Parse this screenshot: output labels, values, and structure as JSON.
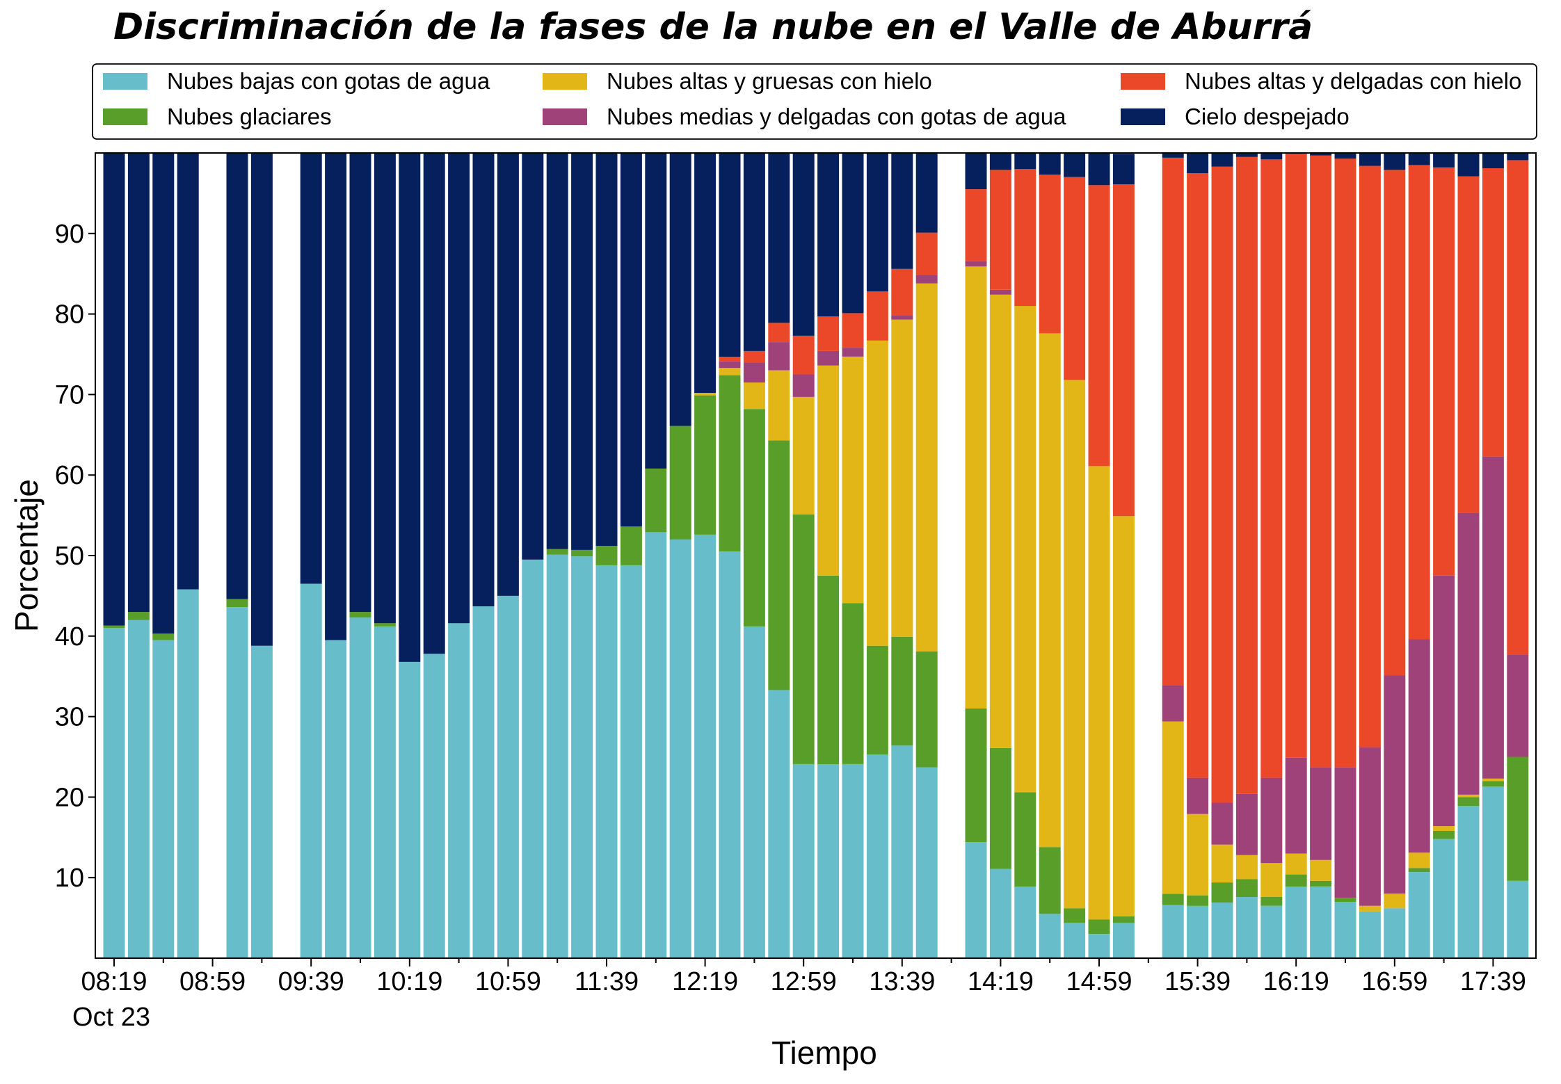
{
  "chart_data": {
    "type": "bar",
    "stacked": true,
    "title": "Discriminación de la fases de la nube en el Valle de Aburrá",
    "xlabel": "Tiempo",
    "ylabel": "Porcentaje",
    "ylim": [
      0,
      100
    ],
    "yticks": [
      10,
      20,
      30,
      40,
      50,
      60,
      70,
      80,
      90
    ],
    "xtick_labels": [
      "08:19",
      "08:59",
      "09:39",
      "10:19",
      "10:59",
      "11:39",
      "12:19",
      "12:59",
      "13:39",
      "14:19",
      "14:59",
      "15:39",
      "16:19",
      "16:59",
      "17:39"
    ],
    "xtick_sublabel": "Oct 23",
    "x_start": "08:19",
    "slot_minutes": 10,
    "legend_position": "top",
    "categories": [
      "08:19",
      "08:29",
      "08:39",
      "08:49",
      "08:59",
      "09:09",
      "09:19",
      "09:29",
      "09:39",
      "09:49",
      "09:59",
      "10:09",
      "10:19",
      "10:29",
      "10:39",
      "10:49",
      "10:59",
      "11:09",
      "11:19",
      "11:29",
      "11:39",
      "11:49",
      "11:59",
      "12:09",
      "12:19",
      "12:29",
      "12:39",
      "12:49",
      "12:59",
      "13:09",
      "13:19",
      "13:29",
      "13:39",
      "13:49",
      "13:59",
      "14:09",
      "14:19",
      "14:29",
      "14:39",
      "14:49",
      "14:59",
      "15:09",
      "15:19",
      "15:29",
      "15:39",
      "15:49",
      "15:59",
      "16:09",
      "16:19",
      "16:29",
      "16:39",
      "16:49",
      "16:59",
      "17:09",
      "17:19",
      "17:29",
      "17:39",
      "17:49"
    ],
    "series": [
      {
        "name": "Nubes bajas con gotas de agua",
        "color": "#67BDCA",
        "values": [
          41,
          42,
          39.5,
          45.8,
          null,
          43.6,
          38.8,
          null,
          46.5,
          39.5,
          42.3,
          41.2,
          36.8,
          37.8,
          41.6,
          43.7,
          45,
          49.5,
          50.1,
          49.9,
          48.8,
          48.8,
          52.9,
          52,
          52.6,
          50.5,
          41.2,
          33.3,
          24.1,
          24.1,
          24.1,
          25.3,
          26.4,
          23.7,
          null,
          14.4,
          11.1,
          8.9,
          5.5,
          4.4,
          3,
          4.4,
          null,
          6.6,
          6.5,
          6.9,
          7.6,
          6.5,
          8.9,
          8.9,
          7,
          5.8,
          6.2,
          10.7,
          14.8,
          18.9,
          21.3,
          9.6
        ]
      },
      {
        "name": "Nubes glaciares",
        "color": "#5A9E2A",
        "values": [
          0.3,
          1,
          0.8,
          0,
          null,
          1,
          0,
          null,
          0,
          0,
          0.7,
          0.4,
          0,
          0,
          0,
          0,
          0,
          0,
          0.7,
          0.8,
          2.4,
          4.8,
          7.9,
          14.1,
          17.3,
          21.9,
          27,
          31,
          31,
          23.4,
          20,
          13.5,
          13.5,
          14.4,
          null,
          16.6,
          15,
          11.7,
          8.3,
          1.8,
          1.8,
          0.8,
          null,
          1.4,
          1.3,
          2.5,
          2.2,
          1.1,
          1.5,
          0.7,
          0.5,
          0,
          0,
          0.5,
          1,
          1.1,
          0.7,
          15.4
        ]
      },
      {
        "name": "Nubes altas y gruesas con hielo",
        "color": "#E2B616",
        "values": [
          0,
          0,
          0,
          0,
          null,
          0,
          0,
          null,
          0,
          0,
          0,
          0,
          0,
          0,
          0,
          0,
          0,
          0,
          0,
          0,
          0,
          0,
          0,
          0,
          0.3,
          0.9,
          3.3,
          8.7,
          14.6,
          26.1,
          30.6,
          37.9,
          39.4,
          45.7,
          null,
          54.9,
          56.3,
          60.4,
          63.8,
          65.6,
          56.3,
          49.7,
          null,
          21.4,
          10.1,
          4.7,
          3,
          4.2,
          2.6,
          2.6,
          0,
          0.7,
          1.8,
          1.9,
          0.6,
          0.3,
          0.3,
          0
        ]
      },
      {
        "name": "Nubes medias y delgadas con gotas de agua",
        "color": "#A0427A",
        "values": [
          0,
          0,
          0,
          0,
          null,
          0,
          0,
          null,
          0,
          0,
          0,
          0,
          0,
          0,
          0,
          0,
          0,
          0,
          0,
          0,
          0,
          0,
          0,
          0,
          0,
          0.8,
          2.5,
          3.5,
          2.8,
          1.8,
          1.1,
          0,
          0.5,
          1,
          null,
          0.7,
          0.6,
          0,
          0,
          0,
          0,
          0,
          null,
          4.5,
          4.5,
          5.2,
          7.6,
          10.6,
          11.9,
          11.5,
          16.2,
          19.7,
          27.1,
          26.5,
          31.1,
          35,
          40,
          12.7
        ]
      },
      {
        "name": "Nubes altas y delgadas con hielo",
        "color": "#EB482A",
        "values": [
          0,
          0,
          0,
          0,
          null,
          0,
          0,
          null,
          0,
          0,
          0,
          0,
          0,
          0,
          0,
          0,
          0,
          0,
          0,
          0,
          0,
          0,
          0,
          0,
          0,
          0.6,
          1.4,
          2.4,
          4.8,
          4.3,
          4.3,
          6.1,
          5.8,
          5.3,
          null,
          8.9,
          14.9,
          17,
          19.7,
          25.2,
          34.9,
          41.2,
          null,
          65.5,
          75.1,
          79,
          79.1,
          76.8,
          75.3,
          76,
          75.6,
          72.2,
          62.8,
          58.9,
          50.7,
          41.8,
          35.8,
          61.4
        ]
      },
      {
        "name": "Cielo despejado",
        "color": "#06205E",
        "values": [
          58.7,
          57,
          59.7,
          54.2,
          null,
          55.4,
          61.2,
          null,
          53.5,
          60.5,
          57,
          58.4,
          63.2,
          62.2,
          58.4,
          56.3,
          55,
          50.5,
          49.2,
          49.3,
          48.8,
          46.4,
          39.2,
          33.9,
          29.8,
          25.3,
          24.6,
          21.1,
          22.7,
          20.3,
          19.9,
          17.2,
          14.4,
          9.9,
          null,
          4.5,
          2.1,
          2.3,
          2.7,
          3,
          4,
          3.8,
          null,
          0.6,
          2.5,
          1.7,
          0.5,
          0.8,
          -0.2,
          0.3,
          0.7,
          1.6,
          2.1,
          1.5,
          1.8,
          2.9,
          1.9,
          0.9
        ]
      }
    ]
  }
}
